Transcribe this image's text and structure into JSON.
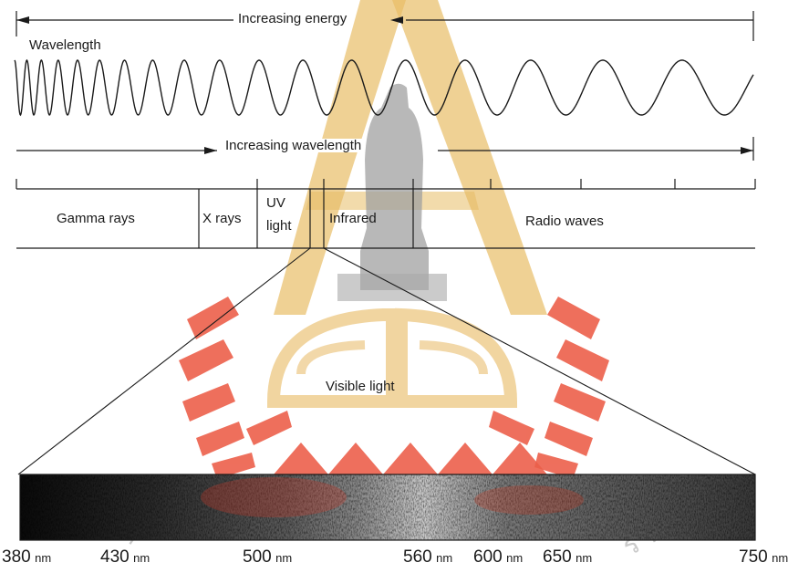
{
  "labels": {
    "increasing_energy": "Increasing energy",
    "wavelength": "Wavelength",
    "increasing_wavelength": "Increasing wavelength",
    "visible_light": "Visible light"
  },
  "bands": {
    "gamma": "Gamma rays",
    "xrays": "X rays",
    "uv_line1": "UV",
    "uv_line2": "light",
    "infrared": "Infrared",
    "radio": "Radio waves"
  },
  "spectrum_ticks": [
    {
      "value": "380",
      "unit": "nm"
    },
    {
      "value": "430",
      "unit": "nm"
    },
    {
      "value": "500",
      "unit": "nm"
    },
    {
      "value": "560",
      "unit": "nm"
    },
    {
      "value": "600",
      "unit": "nm"
    },
    {
      "value": "650",
      "unit": "nm"
    },
    {
      "value": "750",
      "unit": "nm"
    }
  ],
  "colors": {
    "ink": "#1a1a1a",
    "watermark_red": "#e83a22",
    "watermark_gold": "#e0a93a",
    "watermark_gray": "#9a9a9a"
  }
}
